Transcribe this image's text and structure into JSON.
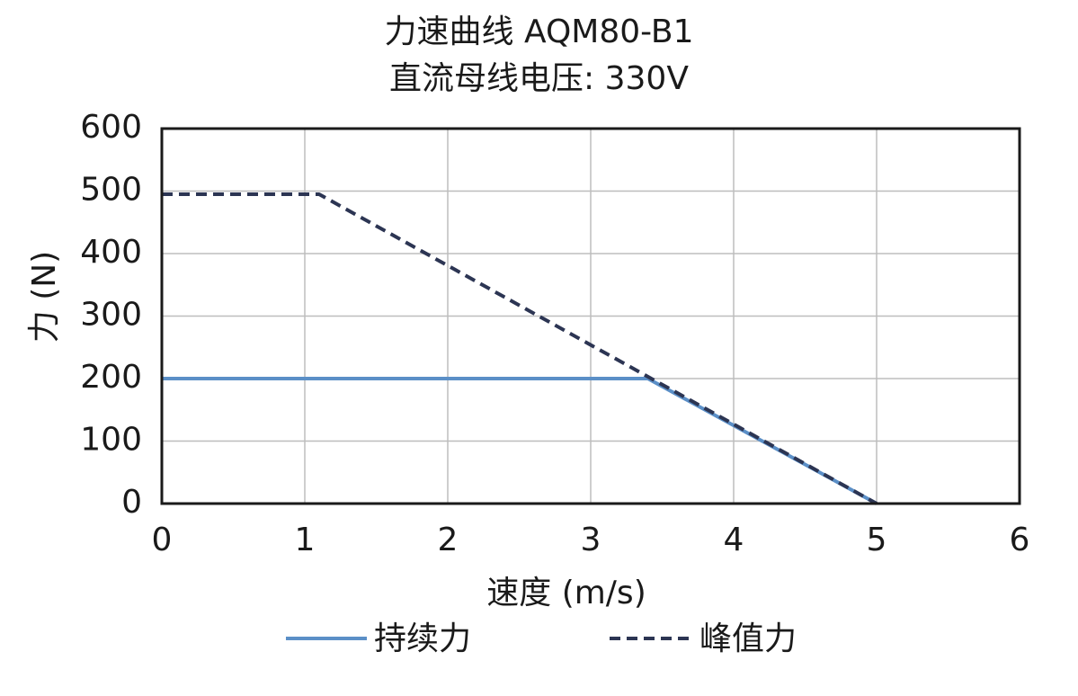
{
  "chart_data": {
    "type": "line",
    "title": "力速曲线 AQM80-B1",
    "subtitle": "直流母线电压: 330V",
    "xlabel": "速度 (m/s)",
    "ylabel": "力 (N)",
    "xlim": [
      0,
      6
    ],
    "ylim": [
      0,
      600
    ],
    "xticks": [
      0,
      1,
      2,
      3,
      4,
      5,
      6
    ],
    "yticks": [
      0,
      100,
      200,
      300,
      400,
      500,
      600
    ],
    "grid": true,
    "legend_position": "bottom",
    "series": [
      {
        "name": "持续力",
        "color": "#5b8fc7",
        "style": "solid",
        "x": [
          0,
          3.4,
          5.0
        ],
        "y": [
          200,
          200,
          0
        ]
      },
      {
        "name": "峰值力",
        "color": "#2c3553",
        "style": "dashed",
        "x": [
          0,
          1.1,
          5.0
        ],
        "y": [
          495,
          495,
          0
        ]
      }
    ]
  }
}
